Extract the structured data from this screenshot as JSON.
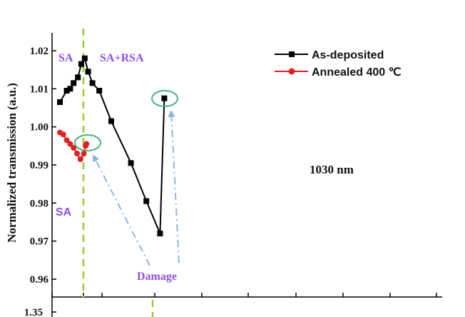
{
  "chart_data": {
    "type": "line",
    "ylabel": "Normalized transmission (a.u.)",
    "y_ticks": [
      "1.02",
      "1.01",
      "1.00",
      "0.99",
      "0.98",
      "0.97",
      "0.96"
    ],
    "ylim": [
      0.955,
      1.025
    ],
    "x_axis_visible": false,
    "grid": false,
    "legend_position": "top-right",
    "series": [
      {
        "name": "As-deposited",
        "color": "#000000",
        "marker": "square",
        "x": [
          0.0,
          0.8,
          1.2,
          1.6,
          2.1,
          2.5,
          2.9,
          3.3,
          3.8,
          4.6,
          6.0,
          8.3,
          10.1,
          11.7
        ],
        "y": [
          1.0065,
          1.0095,
          1.01,
          1.0115,
          1.013,
          1.0165,
          1.018,
          1.0145,
          1.0115,
          1.0095,
          1.0015,
          0.9905,
          0.9805,
          0.972
        ]
      },
      {
        "name": "Annealed 400 ℃",
        "color": "#e61e1e",
        "marker": "circle",
        "x": [
          0.0,
          0.4,
          0.8,
          1.2,
          1.6,
          2.0,
          2.4,
          2.8,
          3.0
        ],
        "y": [
          0.9985,
          0.998,
          0.9965,
          0.9955,
          0.9945,
          0.993,
          0.9915,
          0.993,
          0.995
        ]
      }
    ],
    "damage_points": [
      {
        "series": "As-deposited",
        "x": 12.2,
        "y": 1.0075
      },
      {
        "series": "Annealed 400 ℃",
        "x": 3.1,
        "y": 0.9955
      }
    ],
    "annotations": {
      "sa_top": "SA",
      "sa_rsa": "SA+RSA",
      "sa_bottom": "SA",
      "wavelength": "1030 nm",
      "damage": "Damage"
    },
    "lower_panel_tick": "1.35",
    "colors": {
      "axis": "#000000",
      "divider": "#9acd32",
      "annotation_purple": "#8c4fe6",
      "circle": "#43b57a",
      "arrow": "#8fb4de"
    }
  }
}
